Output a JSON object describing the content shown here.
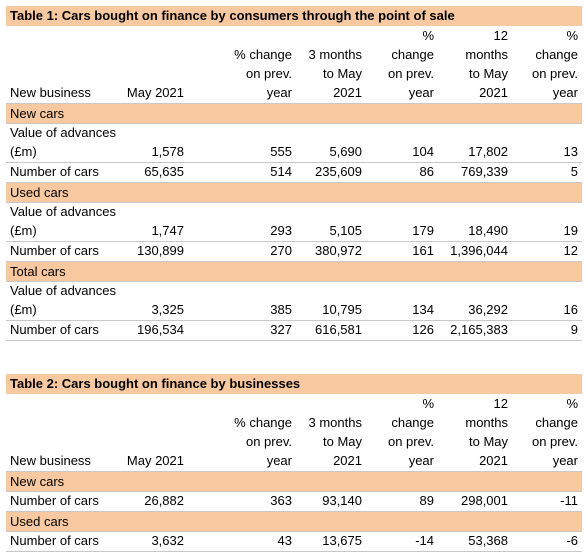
{
  "table1": {
    "title": "Table 1: Cars bought on finance by consumers through the point of sale",
    "row_header": "New business",
    "columns": [
      "May 2021",
      "% change\non prev.\nyear",
      "3 months\nto May\n2021",
      "%\nchange\non prev.\nyear",
      "12\nmonths\nto May\n2021",
      "%\nchange\non prev.\nyear"
    ],
    "sections": [
      {
        "name": "New cars",
        "rows": [
          {
            "label": "Value of advances (£m)",
            "values": [
              "1,578",
              "555",
              "5,690",
              "104",
              "17,802",
              "13"
            ]
          },
          {
            "label": "Number of cars",
            "values": [
              "65,635",
              "514",
              "235,609",
              "86",
              "769,339",
              "5"
            ]
          }
        ]
      },
      {
        "name": "Used cars",
        "rows": [
          {
            "label": "Value of advances (£m)",
            "values": [
              "1,747",
              "293",
              "5,105",
              "179",
              "18,490",
              "19"
            ]
          },
          {
            "label": "Number of cars",
            "values": [
              "130,899",
              "270",
              "380,972",
              "161",
              "1,396,044",
              "12"
            ]
          }
        ]
      },
      {
        "name": "Total cars",
        "rows": [
          {
            "label": "Value of advances (£m)",
            "values": [
              "3,325",
              "385",
              "10,795",
              "134",
              "36,292",
              "16"
            ]
          },
          {
            "label": "Number of cars",
            "values": [
              "196,534",
              "327",
              "616,581",
              "126",
              "2,165,383",
              "9"
            ]
          }
        ]
      }
    ]
  },
  "table2": {
    "title": "Table 2: Cars bought on finance by businesses",
    "row_header": "New business",
    "columns": [
      "May 2021",
      "% change\non prev.\nyear",
      "3 months\nto May\n2021",
      "%\nchange\non prev.\nyear",
      "12\nmonths\nto May\n2021",
      "%\nchange\non prev.\nyear"
    ],
    "sections": [
      {
        "name": "New cars",
        "rows": [
          {
            "label": "Number of cars",
            "values": [
              "26,882",
              "363",
              "93,140",
              "89",
              "298,001",
              "-11"
            ]
          }
        ]
      },
      {
        "name": "Used cars",
        "rows": [
          {
            "label": "Number of cars",
            "values": [
              "3,632",
              "43",
              "13,675",
              "-14",
              "53,368",
              "-6"
            ]
          }
        ]
      }
    ]
  }
}
